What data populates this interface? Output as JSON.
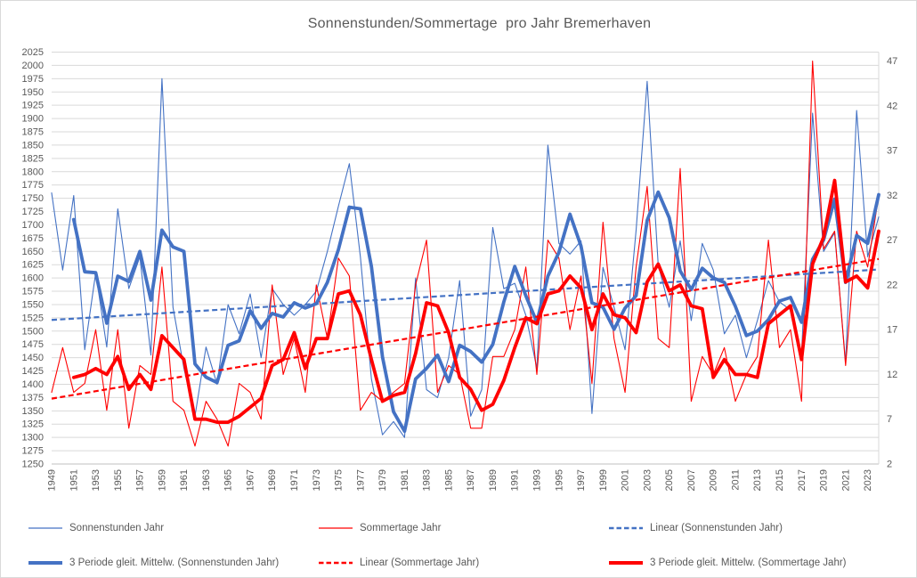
{
  "title": "Sonnenstunden/Sommertage  pro Jahr Bremerhaven",
  "colors": {
    "blue": "#4472C4",
    "red": "#FF0000",
    "text": "#595959",
    "grid": "#D9D9D9",
    "axis_line": "#BFBFBF",
    "background": "#FFFFFF"
  },
  "chart_data": {
    "type": "line",
    "title": "Sonnenstunden/Sommertage  pro Jahr Bremerhaven",
    "xlabel": "",
    "ylabel_left": "",
    "ylabel_right": "",
    "grid": "horizontal",
    "legend_position": "bottom",
    "x": [
      1949,
      1950,
      1951,
      1952,
      1953,
      1954,
      1955,
      1956,
      1957,
      1958,
      1959,
      1960,
      1961,
      1962,
      1963,
      1964,
      1965,
      1966,
      1967,
      1968,
      1969,
      1970,
      1971,
      1972,
      1973,
      1974,
      1975,
      1976,
      1977,
      1978,
      1979,
      1980,
      1981,
      1982,
      1983,
      1984,
      1985,
      1986,
      1987,
      1988,
      1989,
      1990,
      1991,
      1992,
      1993,
      1994,
      1995,
      1996,
      1997,
      1998,
      1999,
      2000,
      2001,
      2002,
      2003,
      2004,
      2005,
      2006,
      2007,
      2008,
      2009,
      2010,
      2011,
      2012,
      2013,
      2014,
      2015,
      2016,
      2017,
      2018,
      2019,
      2020,
      2021,
      2022,
      2023,
      2024
    ],
    "x_tick_labels": [
      "1949",
      "1951",
      "1953",
      "1955",
      "1957",
      "1959",
      "1961",
      "1963",
      "1965",
      "1967",
      "1969",
      "1971",
      "1973",
      "1975",
      "1977",
      "1979",
      "1981",
      "1983",
      "1985",
      "1987",
      "1989",
      "1991",
      "1993",
      "1995",
      "1997",
      "1999",
      "2001",
      "2003",
      "2005",
      "2007",
      "2009",
      "2011",
      "2013",
      "2015",
      "2017",
      "2019",
      "2021",
      "2023"
    ],
    "left_axis": {
      "min": 1250,
      "max": 2025,
      "step": 25,
      "ticks": [
        2025,
        2000,
        1975,
        1950,
        1925,
        1900,
        1875,
        1850,
        1825,
        1800,
        1775,
        1750,
        1725,
        1700,
        1675,
        1650,
        1625,
        1600,
        1575,
        1550,
        1525,
        1500,
        1475,
        1450,
        1425,
        1400,
        1375,
        1350,
        1325,
        1300,
        1275,
        1250
      ]
    },
    "right_axis": {
      "min": 2,
      "max": 48,
      "step": 5,
      "ticks": [
        47,
        42,
        37,
        32,
        27,
        22,
        17,
        12,
        7,
        2
      ]
    },
    "series": [
      {
        "name": "Sonnenstunden Jahr",
        "axis": "left",
        "style": "thin",
        "color_key": "blue",
        "values": [
          1760,
          1615,
          1755,
          1465,
          1610,
          1470,
          1730,
          1580,
          1640,
          1455,
          1975,
          1545,
          1430,
          1340,
          1470,
          1400,
          1550,
          1495,
          1570,
          1450,
          1580,
          1550,
          1530,
          1550,
          1575,
          1650,
          1735,
          1815,
          1640,
          1410,
          1305,
          1330,
          1300,
          1600,
          1390,
          1375,
          1450,
          1595,
          1340,
          1390,
          1695,
          1580,
          1590,
          1530,
          1430,
          1850,
          1665,
          1645,
          1670,
          1345,
          1620,
          1545,
          1465,
          1690,
          1970,
          1625,
          1545,
          1670,
          1520,
          1665,
          1615,
          1495,
          1530,
          1450,
          1520,
          1595,
          1555,
          1540,
          1455,
          1910,
          1650,
          1685,
          1440,
          1915,
          1640,
          1715
        ]
      },
      {
        "name": "Sommertage Jahr",
        "axis": "right",
        "style": "thin",
        "color_key": "red",
        "values": [
          10,
          15,
          10,
          11,
          17,
          8,
          17,
          6,
          13,
          12,
          24,
          9,
          8,
          4,
          9,
          7,
          4,
          11,
          10,
          7,
          22,
          12,
          16,
          10,
          22,
          16,
          25,
          23,
          8,
          10,
          9,
          10,
          11,
          22,
          27,
          10,
          13,
          12,
          6,
          6,
          14,
          14,
          17,
          24,
          12,
          27,
          25,
          17,
          23,
          11,
          29,
          16,
          10,
          24,
          33,
          16,
          15,
          35,
          9,
          14,
          12,
          15,
          9,
          12,
          14,
          27,
          15,
          17,
          9,
          47,
          26,
          28,
          13,
          28,
          24,
          32
        ]
      },
      {
        "name": "Linear (Sonnenstunden Jahr)",
        "axis": "left",
        "style": "dashed",
        "color_key": "blue",
        "trend_start": 1521,
        "trend_end": 1616
      },
      {
        "name": "3 Periode gleit. Mittelw. (Sonnenstunden Jahr)",
        "axis": "left",
        "style": "thick",
        "color_key": "blue",
        "derived": "moving_average_3",
        "source": 0
      },
      {
        "name": "Linear (Sommertage Jahr)",
        "axis": "right",
        "style": "dashed",
        "color_key": "red",
        "trend_start": 9.3,
        "trend_end": 24.9
      },
      {
        "name": "3 Periode gleit. Mittelw. (Sommertage Jahr)",
        "axis": "right",
        "style": "thick",
        "color_key": "red",
        "derived": "moving_average_3",
        "source": 1
      }
    ],
    "legend_rows": [
      [
        0,
        1,
        2
      ],
      [
        3,
        4,
        5
      ]
    ]
  }
}
